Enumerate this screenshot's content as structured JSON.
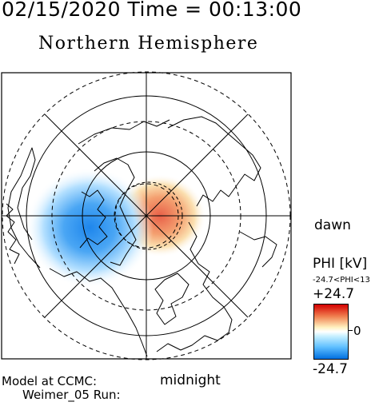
{
  "header": {
    "date_time": "02/15/2020 Time = 00:13:00"
  },
  "subtitle": "Northern Hemisphere",
  "map": {
    "local_time_labels": {
      "dawn": "dawn",
      "midnight": "midnight"
    },
    "potential_pattern": "dawn-side positive cell, dusk-side negative cell"
  },
  "colorbar": {
    "title": "PHI [kV]",
    "range_note": "-24.7<PHI<13",
    "max_label": "+24.7",
    "zero_label": "0",
    "min_label": "-24.7",
    "colors": {
      "max": "#d40000",
      "zero": "#ffffff",
      "min": "#0070e0"
    }
  },
  "footer": {
    "line1": "Model at CCMC:",
    "line2": "Weimer_05 Run:"
  }
}
